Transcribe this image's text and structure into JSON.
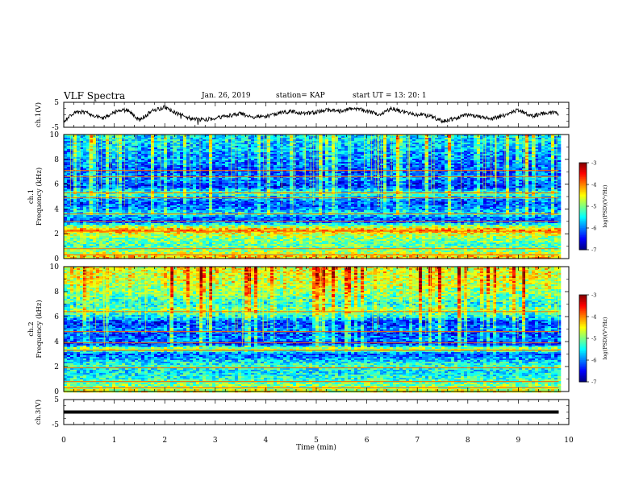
{
  "header": {
    "title": "VLF Spectra",
    "date": "Jan. 26, 2019",
    "station": "station= KAP",
    "start_ut": "start UT = 13: 20: 1"
  },
  "colors": {
    "colormap": [
      "#00007f",
      "#0000ff",
      "#007fff",
      "#00ffff",
      "#7fff7f",
      "#ffff00",
      "#ff7f00",
      "#ff0000",
      "#7f0000"
    ],
    "trace": "#000000",
    "axis": "#000000"
  },
  "chart_data": [
    {
      "type": "line",
      "panel": "ch1-waveform",
      "ylabel": "ch.1(V)",
      "ylim": [
        -5,
        5
      ],
      "yticks": [
        "5",
        "-5"
      ],
      "xlim": [
        0,
        10
      ],
      "x": [
        0,
        0.25,
        0.5,
        0.75,
        1,
        1.25,
        1.5,
        1.75,
        2,
        2.25,
        2.5,
        2.75,
        3,
        3.25,
        3.5,
        3.75,
        4,
        4.25,
        4.5,
        4.75,
        5,
        5.25,
        5.5,
        5.75,
        6,
        6.25,
        6.5,
        6.75,
        7,
        7.25,
        7.5,
        7.75,
        8,
        8.25,
        8.5,
        8.75,
        9,
        9.25,
        9.5,
        9.75,
        9.8
      ],
      "values": [
        -2.5,
        1.5,
        0.5,
        -1.5,
        1,
        2,
        -2,
        1.5,
        3,
        0.5,
        -1.5,
        -2,
        -1.5,
        -0.5,
        0.5,
        -1,
        -0.5,
        0.5,
        1.5,
        0.5,
        1,
        2,
        1.5,
        2.5,
        1.5,
        0,
        2.5,
        1,
        0,
        -0.5,
        -2.5,
        -1.5,
        0,
        -1,
        -1.5,
        0,
        2,
        -0.5,
        0.5,
        1,
        0.5
      ]
    },
    {
      "type": "heatmap",
      "panel": "ch1-spectrogram",
      "ylabel": "ch.1\nFrequency (kHz)",
      "ylim": [
        0,
        10
      ],
      "yticks": [
        "0",
        "2",
        "4",
        "6",
        "8",
        "10"
      ],
      "xlim": [
        0,
        9.8
      ],
      "colorbar": {
        "label": "log(PSD)(V²/Hz)",
        "range": [
          -7,
          -3
        ],
        "ticks": [
          "-3",
          "-4",
          "-5",
          "-6",
          "-7"
        ]
      },
      "frequency_profile_khz": [
        [
          0,
          -4.2
        ],
        [
          0.5,
          -4.8
        ],
        [
          1,
          -5.2
        ],
        [
          1.6,
          -5.0
        ],
        [
          2,
          -4.6
        ],
        [
          2.3,
          -4.0
        ],
        [
          2.7,
          -5.2
        ],
        [
          3,
          -6.3
        ],
        [
          3.3,
          -6.0
        ],
        [
          3.6,
          -5.4
        ],
        [
          4,
          -6.0
        ],
        [
          4.5,
          -6.3
        ],
        [
          5,
          -5.7
        ],
        [
          5.3,
          -5.2
        ],
        [
          5.8,
          -6.4
        ],
        [
          6.5,
          -6.0
        ],
        [
          7,
          -6.3
        ],
        [
          8,
          -6.0
        ],
        [
          9,
          -5.8
        ],
        [
          10,
          -5.6
        ]
      ],
      "tonal_lines_khz": [
        0.3,
        0.8,
        2.2,
        3.0,
        3.6,
        4.9,
        5.3,
        6.6,
        7.1
      ]
    },
    {
      "type": "heatmap",
      "panel": "ch2-spectrogram",
      "ylabel": "ch.2\nFrequency (kHz)",
      "ylim": [
        0,
        10
      ],
      "yticks": [
        "0",
        "2",
        "4",
        "6",
        "8",
        "10"
      ],
      "xlim": [
        0,
        9.8
      ],
      "colorbar": {
        "label": "log(PSD)(V²/Hz)",
        "range": [
          -7,
          -3
        ],
        "ticks": [
          "-3",
          "-4",
          "-5",
          "-6",
          "-7"
        ]
      },
      "frequency_profile_khz": [
        [
          0,
          -4.6
        ],
        [
          0.5,
          -5.0
        ],
        [
          1,
          -5.3
        ],
        [
          1.6,
          -5.6
        ],
        [
          2,
          -5.2
        ],
        [
          2.4,
          -5.6
        ],
        [
          3,
          -6.2
        ],
        [
          3.4,
          -4.6
        ],
        [
          3.8,
          -6.5
        ],
        [
          4.2,
          -6.0
        ],
        [
          4.6,
          -6.3
        ],
        [
          5,
          -6.0
        ],
        [
          5.5,
          -6.4
        ],
        [
          6,
          -5.6
        ],
        [
          6.5,
          -5.0
        ],
        [
          7,
          -5.5
        ],
        [
          7.5,
          -5.2
        ],
        [
          8,
          -5.0
        ],
        [
          9,
          -4.7
        ],
        [
          10,
          -4.6
        ]
      ],
      "tonal_lines_khz": [
        0.3,
        0.8,
        1.9,
        3.3,
        3.9,
        4.8,
        6.4
      ]
    },
    {
      "type": "line",
      "panel": "ch3-waveform",
      "ylabel": "ch.3(V)",
      "ylim": [
        -5,
        5
      ],
      "yticks": [
        "5",
        "-5"
      ],
      "xlim": [
        0,
        10
      ],
      "x": [
        0,
        9.8
      ],
      "values": [
        0,
        0
      ]
    }
  ],
  "x_axis": {
    "label": "Time (min)",
    "ticks": [
      "0",
      "1",
      "2",
      "3",
      "4",
      "5",
      "6",
      "7",
      "8",
      "9",
      "10"
    ]
  }
}
